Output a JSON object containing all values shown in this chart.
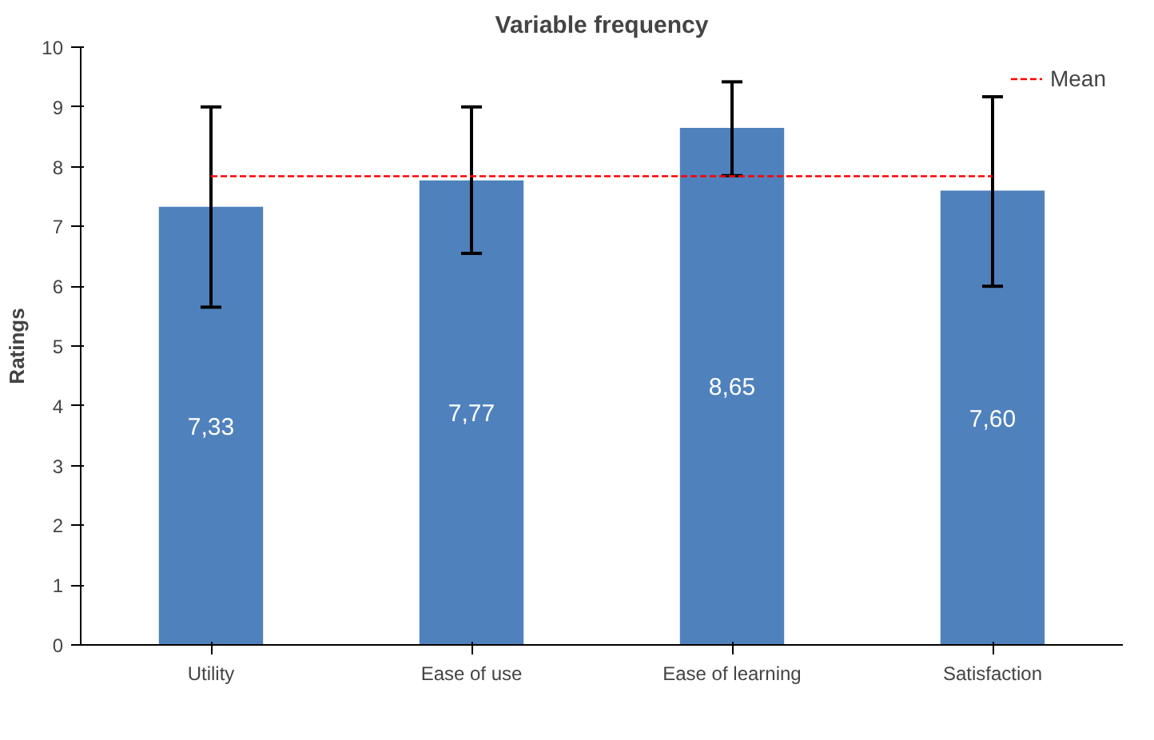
{
  "chart_data": {
    "type": "bar",
    "title": "Variable frequency",
    "ylabel": "Ratings",
    "categories": [
      "Utility",
      "Ease of use",
      "Ease of learning",
      "Satisfaction"
    ],
    "values": [
      7.33,
      7.77,
      8.65,
      7.6
    ],
    "value_labels": [
      "7,33",
      "7,77",
      "8,65",
      "7,60"
    ],
    "errors": [
      [
        5.65,
        9.0
      ],
      [
        6.55,
        9.0
      ],
      [
        7.85,
        9.42
      ],
      [
        6.0,
        9.17
      ]
    ],
    "color": "#4f81bd",
    "ylim": [
      0,
      10
    ],
    "yticks": [
      0,
      1,
      2,
      3,
      4,
      5,
      6,
      7,
      8,
      9,
      10
    ],
    "ref_lines": [
      {
        "axis": "y",
        "value": 7.84,
        "label": "Mean",
        "color": "#ff0000",
        "line_style": "dashed"
      }
    ],
    "grid": false,
    "legend": "top right"
  }
}
